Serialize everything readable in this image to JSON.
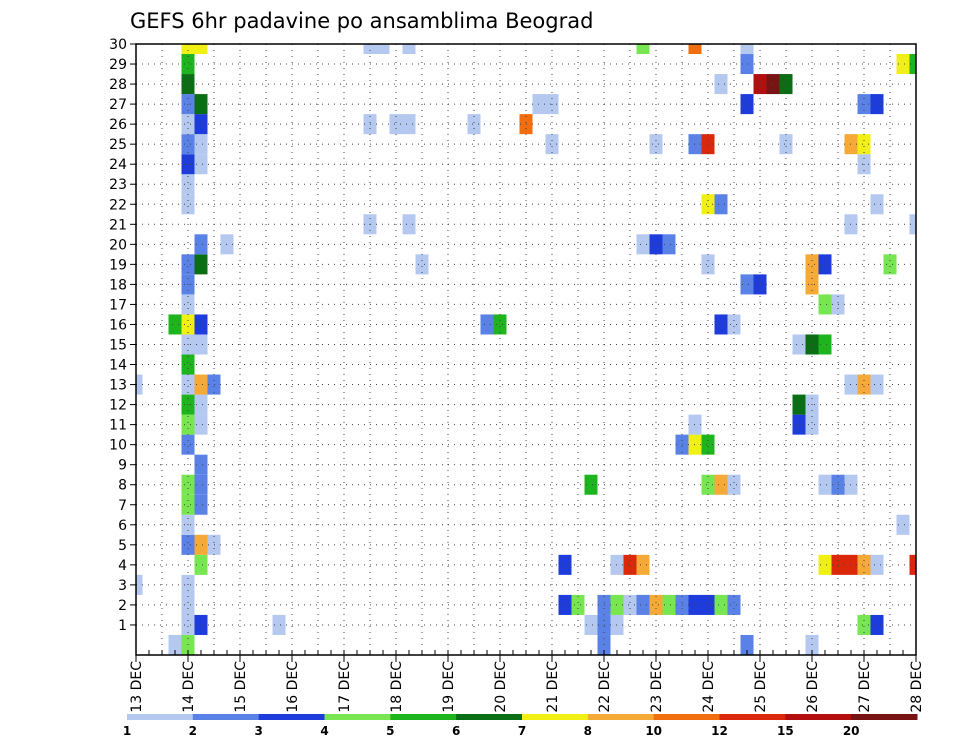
{
  "chart_data": {
    "type": "heatmap",
    "title": "GEFS 6hr padavine po ansamblima Beograd",
    "xlabel": "",
    "ylabel": "",
    "x_ticks": [
      "13 DEC",
      "14 DEC",
      "15 DEC",
      "16 DEC",
      "17 DEC",
      "18 DEC",
      "19 DEC",
      "20 DEC",
      "21 DEC",
      "22 DEC",
      "23 DEC",
      "24 DEC",
      "25 DEC",
      "26 DEC",
      "27 DEC",
      "28 DEC"
    ],
    "xlim": [
      "13 DEC 00Z",
      "28 DEC 00Z"
    ],
    "time_step": "6hr",
    "y_ticks": [
      1,
      2,
      3,
      4,
      5,
      6,
      7,
      8,
      9,
      10,
      11,
      12,
      13,
      14,
      15,
      16,
      17,
      18,
      19,
      20,
      21,
      22,
      23,
      24,
      25,
      26,
      27,
      28,
      29,
      30
    ],
    "ylim": [
      0,
      30
    ],
    "grid": "dotted",
    "legend": {
      "position": "bottom",
      "labels": [
        "1",
        "2",
        "3",
        "4",
        "5",
        "6",
        "7",
        "8",
        "10",
        "12",
        "15",
        "20"
      ],
      "colors": [
        "#b4c8f0",
        "#5a82e6",
        "#1e3cdc",
        "#78e650",
        "#1eb41e",
        "#0a6e14",
        "#f0f014",
        "#f5aa37",
        "#f06e0f",
        "#dc280a",
        "#b40f0f",
        "#781414"
      ]
    },
    "cells": [
      {
        "t": "14 DEC 00Z",
        "m": 0,
        "c": 4
      },
      {
        "t": "14 DEC 00Z",
        "m": 1,
        "c": 1
      },
      {
        "t": "14 DEC 00Z",
        "m": 2,
        "c": 1
      },
      {
        "t": "14 DEC 00Z",
        "m": 3,
        "c": 1
      },
      {
        "t": "14 DEC 00Z",
        "m": 5,
        "c": 2
      },
      {
        "t": "14 DEC 00Z",
        "m": 6,
        "c": 1
      },
      {
        "t": "14 DEC 00Z",
        "m": 7,
        "c": 4
      },
      {
        "t": "14 DEC 00Z",
        "m": 8,
        "c": 4
      },
      {
        "t": "14 DEC 00Z",
        "m": 10,
        "c": 2
      },
      {
        "t": "14 DEC 00Z",
        "m": 11,
        "c": 4
      },
      {
        "t": "14 DEC 00Z",
        "m": 12,
        "c": 5
      },
      {
        "t": "14 DEC 00Z",
        "m": 13,
        "c": 1
      },
      {
        "t": "14 DEC 00Z",
        "m": 14,
        "c": 5
      },
      {
        "t": "14 DEC 00Z",
        "m": 15,
        "c": 1
      },
      {
        "t": "14 DEC 00Z",
        "m": 16,
        "c": 7
      },
      {
        "t": "14 DEC 00Z",
        "m": 17,
        "c": 1
      },
      {
        "t": "14 DEC 00Z",
        "m": 18,
        "c": 2
      },
      {
        "t": "14 DEC 00Z",
        "m": 19,
        "c": 2
      },
      {
        "t": "14 DEC 00Z",
        "m": 22,
        "c": 1
      },
      {
        "t": "14 DEC 00Z",
        "m": 23,
        "c": 1
      },
      {
        "t": "14 DEC 00Z",
        "m": 24,
        "c": 3
      },
      {
        "t": "14 DEC 00Z",
        "m": 25,
        "c": 2
      },
      {
        "t": "14 DEC 00Z",
        "m": 26,
        "c": 1
      },
      {
        "t": "14 DEC 00Z",
        "m": 27,
        "c": 2
      },
      {
        "t": "14 DEC 00Z",
        "m": 28,
        "c": 6
      },
      {
        "t": "14 DEC 00Z",
        "m": 29,
        "c": 5
      },
      {
        "t": "14 DEC 00Z",
        "m": 30,
        "c": 7
      },
      {
        "t": "13 DEC 18Z",
        "m": 16,
        "c": 5
      },
      {
        "t": "13 DEC 18Z",
        "m": 0,
        "c": 1
      },
      {
        "t": "14 DEC 06Z",
        "m": 1,
        "c": 3
      },
      {
        "t": "14 DEC 06Z",
        "m": 4,
        "c": 4
      },
      {
        "t": "14 DEC 06Z",
        "m": 5,
        "c": 8
      },
      {
        "t": "14 DEC 06Z",
        "m": 7,
        "c": 2
      },
      {
        "t": "14 DEC 06Z",
        "m": 8,
        "c": 2
      },
      {
        "t": "14 DEC 06Z",
        "m": 9,
        "c": 2
      },
      {
        "t": "14 DEC 06Z",
        "m": 11,
        "c": 1
      },
      {
        "t": "14 DEC 06Z",
        "m": 12,
        "c": 1
      },
      {
        "t": "14 DEC 06Z",
        "m": 13,
        "c": 8
      },
      {
        "t": "14 DEC 06Z",
        "m": 15,
        "c": 1
      },
      {
        "t": "14 DEC 06Z",
        "m": 16,
        "c": 3
      },
      {
        "t": "14 DEC 06Z",
        "m": 19,
        "c": 6
      },
      {
        "t": "14 DEC 06Z",
        "m": 20,
        "c": 2
      },
      {
        "t": "14 DEC 06Z",
        "m": 24,
        "c": 1
      },
      {
        "t": "14 DEC 06Z",
        "m": 25,
        "c": 1
      },
      {
        "t": "14 DEC 06Z",
        "m": 26,
        "c": 3
      },
      {
        "t": "14 DEC 06Z",
        "m": 27,
        "c": 6
      },
      {
        "t": "14 DEC 06Z",
        "m": 30,
        "c": 7
      },
      {
        "t": "14 DEC 12Z",
        "m": 13,
        "c": 2
      },
      {
        "t": "14 DEC 12Z",
        "m": 5,
        "c": 1
      },
      {
        "t": "14 DEC 18Z",
        "m": 20,
        "c": 1
      },
      {
        "t": "13 DEC 00Z",
        "m": 3,
        "c": 1
      },
      {
        "t": "13 DEC 00Z",
        "m": 13,
        "c": 1
      },
      {
        "t": "15 DEC 18Z",
        "m": 1,
        "c": 1
      },
      {
        "t": "17 DEC 12Z",
        "m": 21,
        "c": 1
      },
      {
        "t": "17 DEC 12Z",
        "m": 26,
        "c": 1
      },
      {
        "t": "17 DEC 12Z",
        "m": 30,
        "c": 1
      },
      {
        "t": "17 DEC 18Z",
        "m": 30,
        "c": 1
      },
      {
        "t": "18 DEC 00Z",
        "m": 26,
        "c": 1
      },
      {
        "t": "18 DEC 06Z",
        "m": 21,
        "c": 1
      },
      {
        "t": "18 DEC 06Z",
        "m": 26,
        "c": 1
      },
      {
        "t": "18 DEC 06Z",
        "m": 30,
        "c": 1
      },
      {
        "t": "18 DEC 12Z",
        "m": 19,
        "c": 1
      },
      {
        "t": "19 DEC 12Z",
        "m": 26,
        "c": 1
      },
      {
        "t": "19 DEC 18Z",
        "m": 16,
        "c": 2
      },
      {
        "t": "20 DEC 00Z",
        "m": 16,
        "c": 5
      },
      {
        "t": "20 DEC 12Z",
        "m": 26,
        "c": 9
      },
      {
        "t": "20 DEC 18Z",
        "m": 27,
        "c": 1
      },
      {
        "t": "21 DEC 00Z",
        "m": 25,
        "c": 1
      },
      {
        "t": "21 DEC 00Z",
        "m": 27,
        "c": 1
      },
      {
        "t": "21 DEC 06Z",
        "m": 2,
        "c": 3
      },
      {
        "t": "21 DEC 06Z",
        "m": 4,
        "c": 3
      },
      {
        "t": "21 DEC 12Z",
        "m": 2,
        "c": 4
      },
      {
        "t": "21 DEC 18Z",
        "m": 1,
        "c": 1
      },
      {
        "t": "21 DEC 18Z",
        "m": 8,
        "c": 5
      },
      {
        "t": "22 DEC 00Z",
        "m": 0,
        "c": 2
      },
      {
        "t": "22 DEC 00Z",
        "m": 1,
        "c": 2
      },
      {
        "t": "22 DEC 00Z",
        "m": 2,
        "c": 2
      },
      {
        "t": "22 DEC 06Z",
        "m": 1,
        "c": 1
      },
      {
        "t": "22 DEC 06Z",
        "m": 2,
        "c": 4
      },
      {
        "t": "22 DEC 06Z",
        "m": 4,
        "c": 1
      },
      {
        "t": "22 DEC 12Z",
        "m": 2,
        "c": 1
      },
      {
        "t": "22 DEC 12Z",
        "m": 4,
        "c": 10
      },
      {
        "t": "22 DEC 18Z",
        "m": 2,
        "c": 2
      },
      {
        "t": "22 DEC 18Z",
        "m": 4,
        "c": 8
      },
      {
        "t": "22 DEC 18Z",
        "m": 20,
        "c": 1
      },
      {
        "t": "22 DEC 18Z",
        "m": 30,
        "c": 4
      },
      {
        "t": "23 DEC 00Z",
        "m": 2,
        "c": 8
      },
      {
        "t": "23 DEC 00Z",
        "m": 20,
        "c": 3
      },
      {
        "t": "23 DEC 00Z",
        "m": 25,
        "c": 1
      },
      {
        "t": "23 DEC 06Z",
        "m": 2,
        "c": 4
      },
      {
        "t": "23 DEC 06Z",
        "m": 20,
        "c": 2
      },
      {
        "t": "23 DEC 12Z",
        "m": 2,
        "c": 2
      },
      {
        "t": "23 DEC 12Z",
        "m": 10,
        "c": 2
      },
      {
        "t": "23 DEC 18Z",
        "m": 2,
        "c": 3
      },
      {
        "t": "23 DEC 18Z",
        "m": 10,
        "c": 7
      },
      {
        "t": "23 DEC 18Z",
        "m": 11,
        "c": 1
      },
      {
        "t": "23 DEC 18Z",
        "m": 25,
        "c": 2
      },
      {
        "t": "23 DEC 18Z",
        "m": 30,
        "c": 9
      },
      {
        "t": "24 DEC 00Z",
        "m": 2,
        "c": 3
      },
      {
        "t": "24 DEC 00Z",
        "m": 8,
        "c": 4
      },
      {
        "t": "24 DEC 00Z",
        "m": 10,
        "c": 5
      },
      {
        "t": "24 DEC 00Z",
        "m": 19,
        "c": 1
      },
      {
        "t": "24 DEC 00Z",
        "m": 22,
        "c": 7
      },
      {
        "t": "24 DEC 00Z",
        "m": 25,
        "c": 10
      },
      {
        "t": "24 DEC 06Z",
        "m": 2,
        "c": 4
      },
      {
        "t": "24 DEC 06Z",
        "m": 8,
        "c": 8
      },
      {
        "t": "24 DEC 06Z",
        "m": 16,
        "c": 3
      },
      {
        "t": "24 DEC 06Z",
        "m": 22,
        "c": 2
      },
      {
        "t": "24 DEC 06Z",
        "m": 28,
        "c": 1
      },
      {
        "t": "24 DEC 12Z",
        "m": 2,
        "c": 2
      },
      {
        "t": "24 DEC 12Z",
        "m": 8,
        "c": 1
      },
      {
        "t": "24 DEC 12Z",
        "m": 16,
        "c": 1
      },
      {
        "t": "24 DEC 18Z",
        "m": 0,
        "c": 2
      },
      {
        "t": "24 DEC 18Z",
        "m": 18,
        "c": 2
      },
      {
        "t": "24 DEC 18Z",
        "m": 27,
        "c": 3
      },
      {
        "t": "24 DEC 18Z",
        "m": 29,
        "c": 2
      },
      {
        "t": "24 DEC 18Z",
        "m": 30,
        "c": 1
      },
      {
        "t": "25 DEC 00Z",
        "m": 18,
        "c": 3
      },
      {
        "t": "25 DEC 00Z",
        "m": 28,
        "c": 11
      },
      {
        "t": "25 DEC 06Z",
        "m": 28,
        "c": 12
      },
      {
        "t": "25 DEC 12Z",
        "m": 28,
        "c": 6
      },
      {
        "t": "25 DEC 12Z",
        "m": 25,
        "c": 1
      },
      {
        "t": "25 DEC 18Z",
        "m": 11,
        "c": 3
      },
      {
        "t": "25 DEC 18Z",
        "m": 12,
        "c": 6
      },
      {
        "t": "25 DEC 18Z",
        "m": 15,
        "c": 1
      },
      {
        "t": "26 DEC 00Z",
        "m": 0,
        "c": 1
      },
      {
        "t": "26 DEC 00Z",
        "m": 11,
        "c": 1
      },
      {
        "t": "26 DEC 00Z",
        "m": 12,
        "c": 1
      },
      {
        "t": "26 DEC 00Z",
        "m": 15,
        "c": 6
      },
      {
        "t": "26 DEC 00Z",
        "m": 18,
        "c": 8
      },
      {
        "t": "26 DEC 00Z",
        "m": 19,
        "c": 8
      },
      {
        "t": "26 DEC 06Z",
        "m": 4,
        "c": 7
      },
      {
        "t": "26 DEC 06Z",
        "m": 8,
        "c": 1
      },
      {
        "t": "26 DEC 06Z",
        "m": 15,
        "c": 5
      },
      {
        "t": "26 DEC 06Z",
        "m": 17,
        "c": 4
      },
      {
        "t": "26 DEC 06Z",
        "m": 19,
        "c": 3
      },
      {
        "t": "26 DEC 12Z",
        "m": 4,
        "c": 10
      },
      {
        "t": "26 DEC 12Z",
        "m": 8,
        "c": 2
      },
      {
        "t": "26 DEC 12Z",
        "m": 17,
        "c": 1
      },
      {
        "t": "26 DEC 18Z",
        "m": 4,
        "c": 10
      },
      {
        "t": "26 DEC 18Z",
        "m": 8,
        "c": 1
      },
      {
        "t": "26 DEC 18Z",
        "m": 13,
        "c": 1
      },
      {
        "t": "26 DEC 18Z",
        "m": 21,
        "c": 1
      },
      {
        "t": "26 DEC 18Z",
        "m": 25,
        "c": 8
      },
      {
        "t": "27 DEC 00Z",
        "m": 1,
        "c": 4
      },
      {
        "t": "27 DEC 00Z",
        "m": 4,
        "c": 8
      },
      {
        "t": "27 DEC 00Z",
        "m": 13,
        "c": 8
      },
      {
        "t": "27 DEC 00Z",
        "m": 24,
        "c": 1
      },
      {
        "t": "27 DEC 00Z",
        "m": 25,
        "c": 7
      },
      {
        "t": "27 DEC 00Z",
        "m": 27,
        "c": 2
      },
      {
        "t": "27 DEC 06Z",
        "m": 1,
        "c": 3
      },
      {
        "t": "27 DEC 06Z",
        "m": 4,
        "c": 1
      },
      {
        "t": "27 DEC 06Z",
        "m": 13,
        "c": 1
      },
      {
        "t": "27 DEC 06Z",
        "m": 22,
        "c": 1
      },
      {
        "t": "27 DEC 06Z",
        "m": 27,
        "c": 3
      },
      {
        "t": "27 DEC 12Z",
        "m": 19,
        "c": 4
      },
      {
        "t": "27 DEC 18Z",
        "m": 6,
        "c": 1
      },
      {
        "t": "27 DEC 18Z",
        "m": 29,
        "c": 7
      },
      {
        "t": "28 DEC 00Z",
        "m": 4,
        "c": 10
      },
      {
        "t": "28 DEC 00Z",
        "m": 21,
        "c": 1
      },
      {
        "t": "28 DEC 00Z",
        "m": 29,
        "c": 5
      }
    ]
  }
}
